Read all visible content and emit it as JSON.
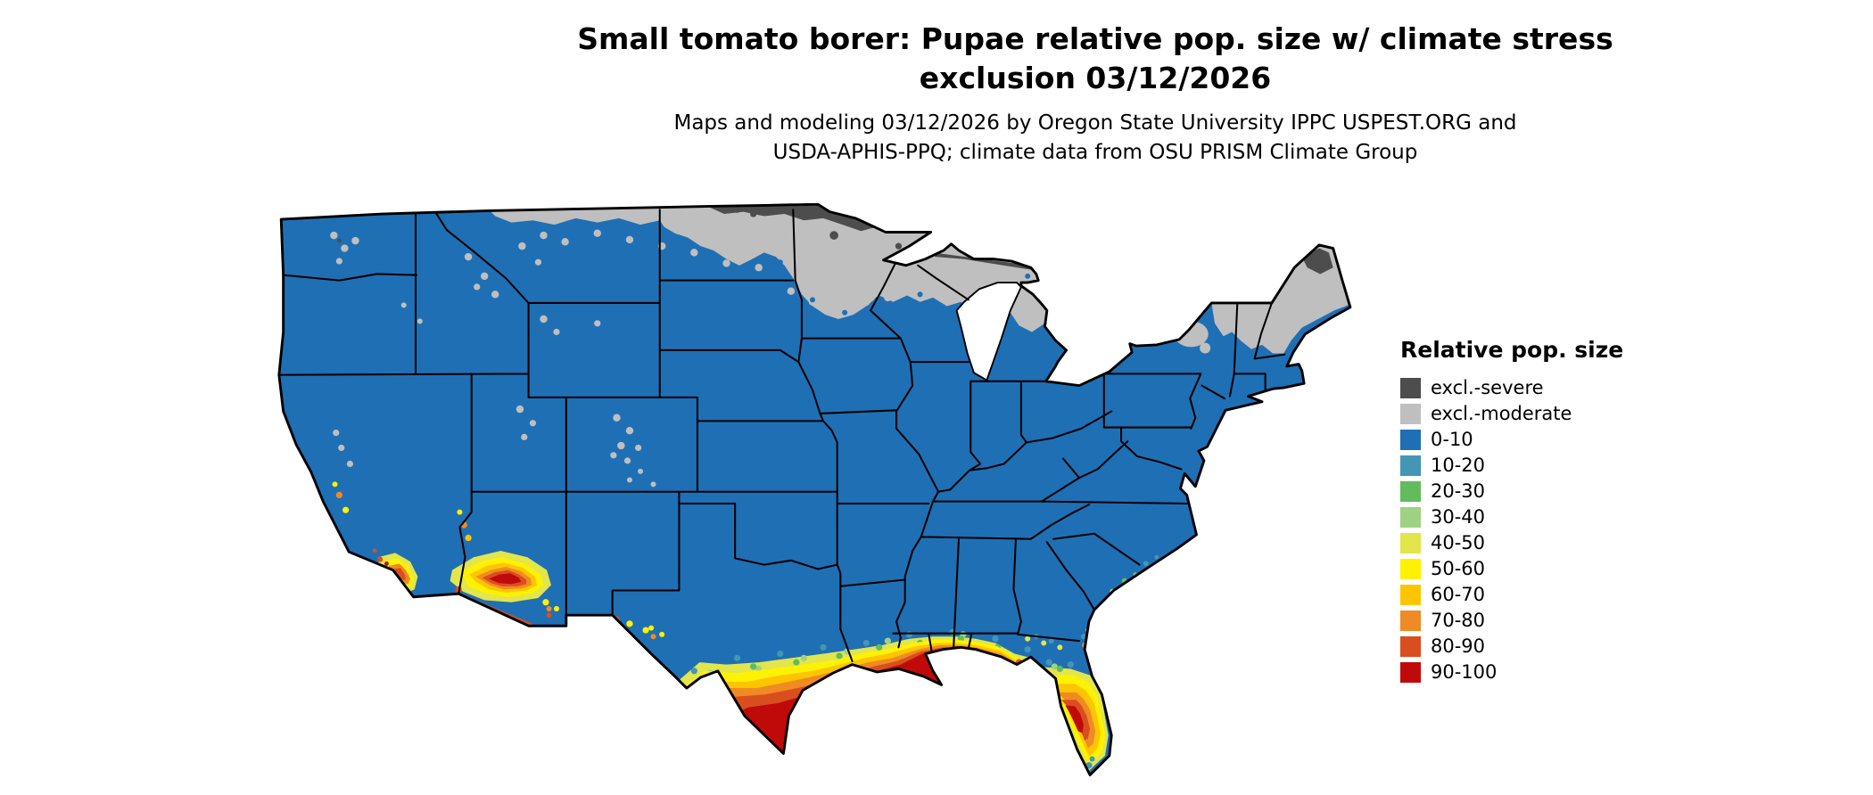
{
  "header": {
    "title_line1": "Small tomato borer: Pupae relative pop. size w/ climate stress",
    "title_line2": "exclusion 03/12/2026",
    "subtitle_line1": "Maps and modeling 03/12/2026 by Oregon State University IPPC USPEST.ORG and",
    "subtitle_line2": "USDA-APHIS-PPQ; climate data from OSU PRISM Climate Group"
  },
  "map": {
    "region": "Continental United States",
    "kind": "categorical raster population-size map with state borders"
  },
  "legend": {
    "title": "Relative pop. size",
    "entries": [
      {
        "label": "excl.-severe",
        "color": "#4D4D4D"
      },
      {
        "label": "excl.-moderate",
        "color": "#BFBFBF"
      },
      {
        "label": "0-10",
        "color": "#1F6FB5"
      },
      {
        "label": "10-20",
        "color": "#4396B4"
      },
      {
        "label": "20-30",
        "color": "#62BB5D"
      },
      {
        "label": "30-40",
        "color": "#9FD183"
      },
      {
        "label": "40-50",
        "color": "#E2E54B"
      },
      {
        "label": "50-60",
        "color": "#FFF200"
      },
      {
        "label": "60-70",
        "color": "#FDC500"
      },
      {
        "label": "70-80",
        "color": "#F08A24"
      },
      {
        "label": "80-90",
        "color": "#D94E1F"
      },
      {
        "label": "90-100",
        "color": "#C00A0A"
      }
    ]
  }
}
